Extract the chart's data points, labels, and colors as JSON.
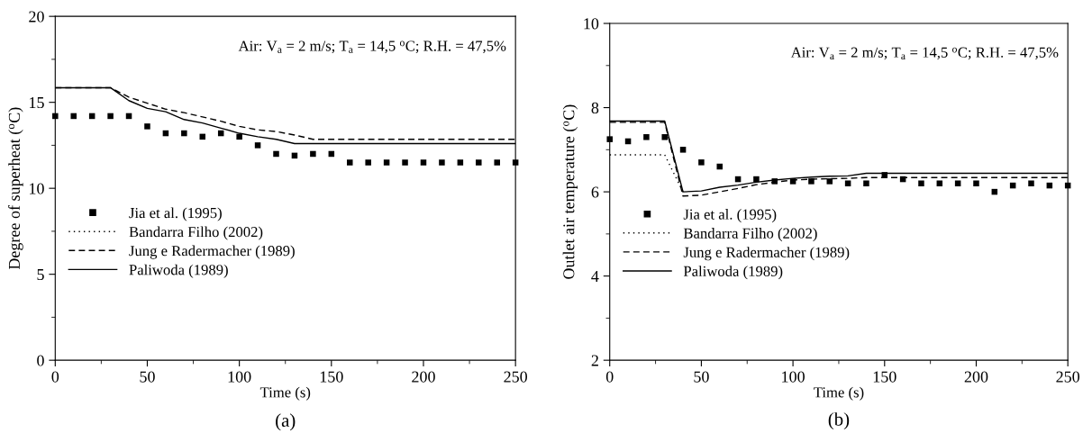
{
  "chart_data": [
    {
      "type": "line",
      "title": "(a)",
      "xlabel": "Time (s)",
      "ylabel": "Degree of superheat ($^{o}$C)",
      "annotations": [
        "Air: V$_{a}$ = 2 m/s; T$_{a}$ = 14,5 $^{o}$C; R.H. = 47,5%"
      ],
      "xlim": [
        0,
        250
      ],
      "xticks": [
        0,
        50,
        100,
        150,
        200,
        250
      ],
      "ylim": [
        0,
        20
      ],
      "yticks": [
        0,
        5,
        10,
        15,
        20
      ],
      "grid": false,
      "legend": "lower left",
      "series": [
        {
          "name": "Jia et al. (1995)",
          "type": "scatter",
          "marker": "square",
          "color": "#000000",
          "x": [
            0,
            10,
            20,
            30,
            40,
            50,
            60,
            70,
            80,
            90,
            100,
            110,
            120,
            130,
            140,
            150,
            160,
            170,
            180,
            190,
            200,
            210,
            220,
            230,
            240,
            250
          ],
          "values": [
            14.2,
            14.2,
            14.2,
            14.2,
            14.2,
            13.6,
            13.2,
            13.2,
            13.0,
            13.2,
            13.0,
            12.5,
            12.0,
            11.9,
            12.0,
            12.0,
            11.5,
            11.5,
            11.5,
            11.5,
            11.5,
            11.5,
            11.5,
            11.5,
            11.5,
            11.5
          ]
        },
        {
          "name": "Bandarra Filho (2002)",
          "line_style": "dotted",
          "color": "#000000"
        },
        {
          "name": "Jung e Radermacher (1989)",
          "line_style": "dashed",
          "color": "#000000",
          "x": [
            0,
            30,
            40,
            50,
            60,
            70,
            80,
            90,
            100,
            110,
            120,
            130,
            140,
            250
          ],
          "values": [
            15.85,
            15.85,
            15.3,
            14.95,
            14.6,
            14.4,
            14.15,
            13.9,
            13.6,
            13.4,
            13.3,
            13.1,
            12.85,
            12.85
          ]
        },
        {
          "name": "Paliwoda (1989)",
          "line_style": "solid",
          "color": "#000000",
          "x": [
            0,
            30,
            40,
            50,
            60,
            70,
            80,
            90,
            100,
            110,
            120,
            130,
            140,
            250
          ],
          "values": [
            15.85,
            15.85,
            15.1,
            14.65,
            14.45,
            14.0,
            13.8,
            13.5,
            13.2,
            13.0,
            12.85,
            12.6,
            12.6,
            12.6
          ]
        }
      ]
    },
    {
      "type": "line",
      "title": "(b)",
      "xlabel": "Time (s)",
      "ylabel": "Outlet air temperature ($^{o}$C)",
      "annotations": [
        "Air: V$_{a}$ = 2 m/s; T$_{a}$ = 14,5 $^{o}$C; R.H. = 47,5%"
      ],
      "xlim": [
        0,
        250
      ],
      "xticks": [
        0,
        50,
        100,
        150,
        200,
        250
      ],
      "ylim": [
        2,
        10
      ],
      "yticks": [
        2,
        4,
        6,
        8,
        10
      ],
      "grid": false,
      "legend": "lower left",
      "series": [
        {
          "name": "Jia et al. (1995)",
          "type": "scatter",
          "marker": "square",
          "color": "#000000",
          "x": [
            0,
            10,
            20,
            30,
            40,
            50,
            60,
            70,
            80,
            90,
            100,
            110,
            120,
            130,
            140,
            150,
            160,
            170,
            180,
            190,
            200,
            210,
            220,
            230,
            240,
            250
          ],
          "values": [
            7.25,
            7.2,
            7.3,
            7.3,
            7.0,
            6.7,
            6.6,
            6.3,
            6.3,
            6.25,
            6.25,
            6.25,
            6.25,
            6.2,
            6.2,
            6.4,
            6.3,
            6.2,
            6.2,
            6.2,
            6.2,
            6.0,
            6.15,
            6.2,
            6.15,
            6.15
          ]
        },
        {
          "name": "Bandarra Filho (2002)",
          "line_style": "dotted",
          "color": "#000000",
          "x": [
            0,
            30,
            40
          ],
          "values": [
            6.88,
            6.88,
            6.0
          ]
        },
        {
          "name": "Jung e Radermacher (1989)",
          "line_style": "dashed",
          "color": "#000000",
          "x": [
            0,
            30,
            40,
            50,
            60,
            70,
            80,
            90,
            100,
            110,
            120,
            130,
            140,
            250
          ],
          "values": [
            7.65,
            7.65,
            5.9,
            5.92,
            6.0,
            6.08,
            6.17,
            6.23,
            6.28,
            6.3,
            6.31,
            6.32,
            6.34,
            6.34
          ]
        },
        {
          "name": "Paliwoda (1989)",
          "line_style": "solid",
          "color": "#000000",
          "x": [
            0,
            30,
            40,
            50,
            60,
            70,
            80,
            90,
            100,
            110,
            120,
            130,
            140,
            250
          ],
          "values": [
            7.68,
            7.68,
            6.0,
            6.02,
            6.11,
            6.16,
            6.23,
            6.28,
            6.32,
            6.35,
            6.37,
            6.38,
            6.44,
            6.44
          ]
        }
      ]
    }
  ]
}
